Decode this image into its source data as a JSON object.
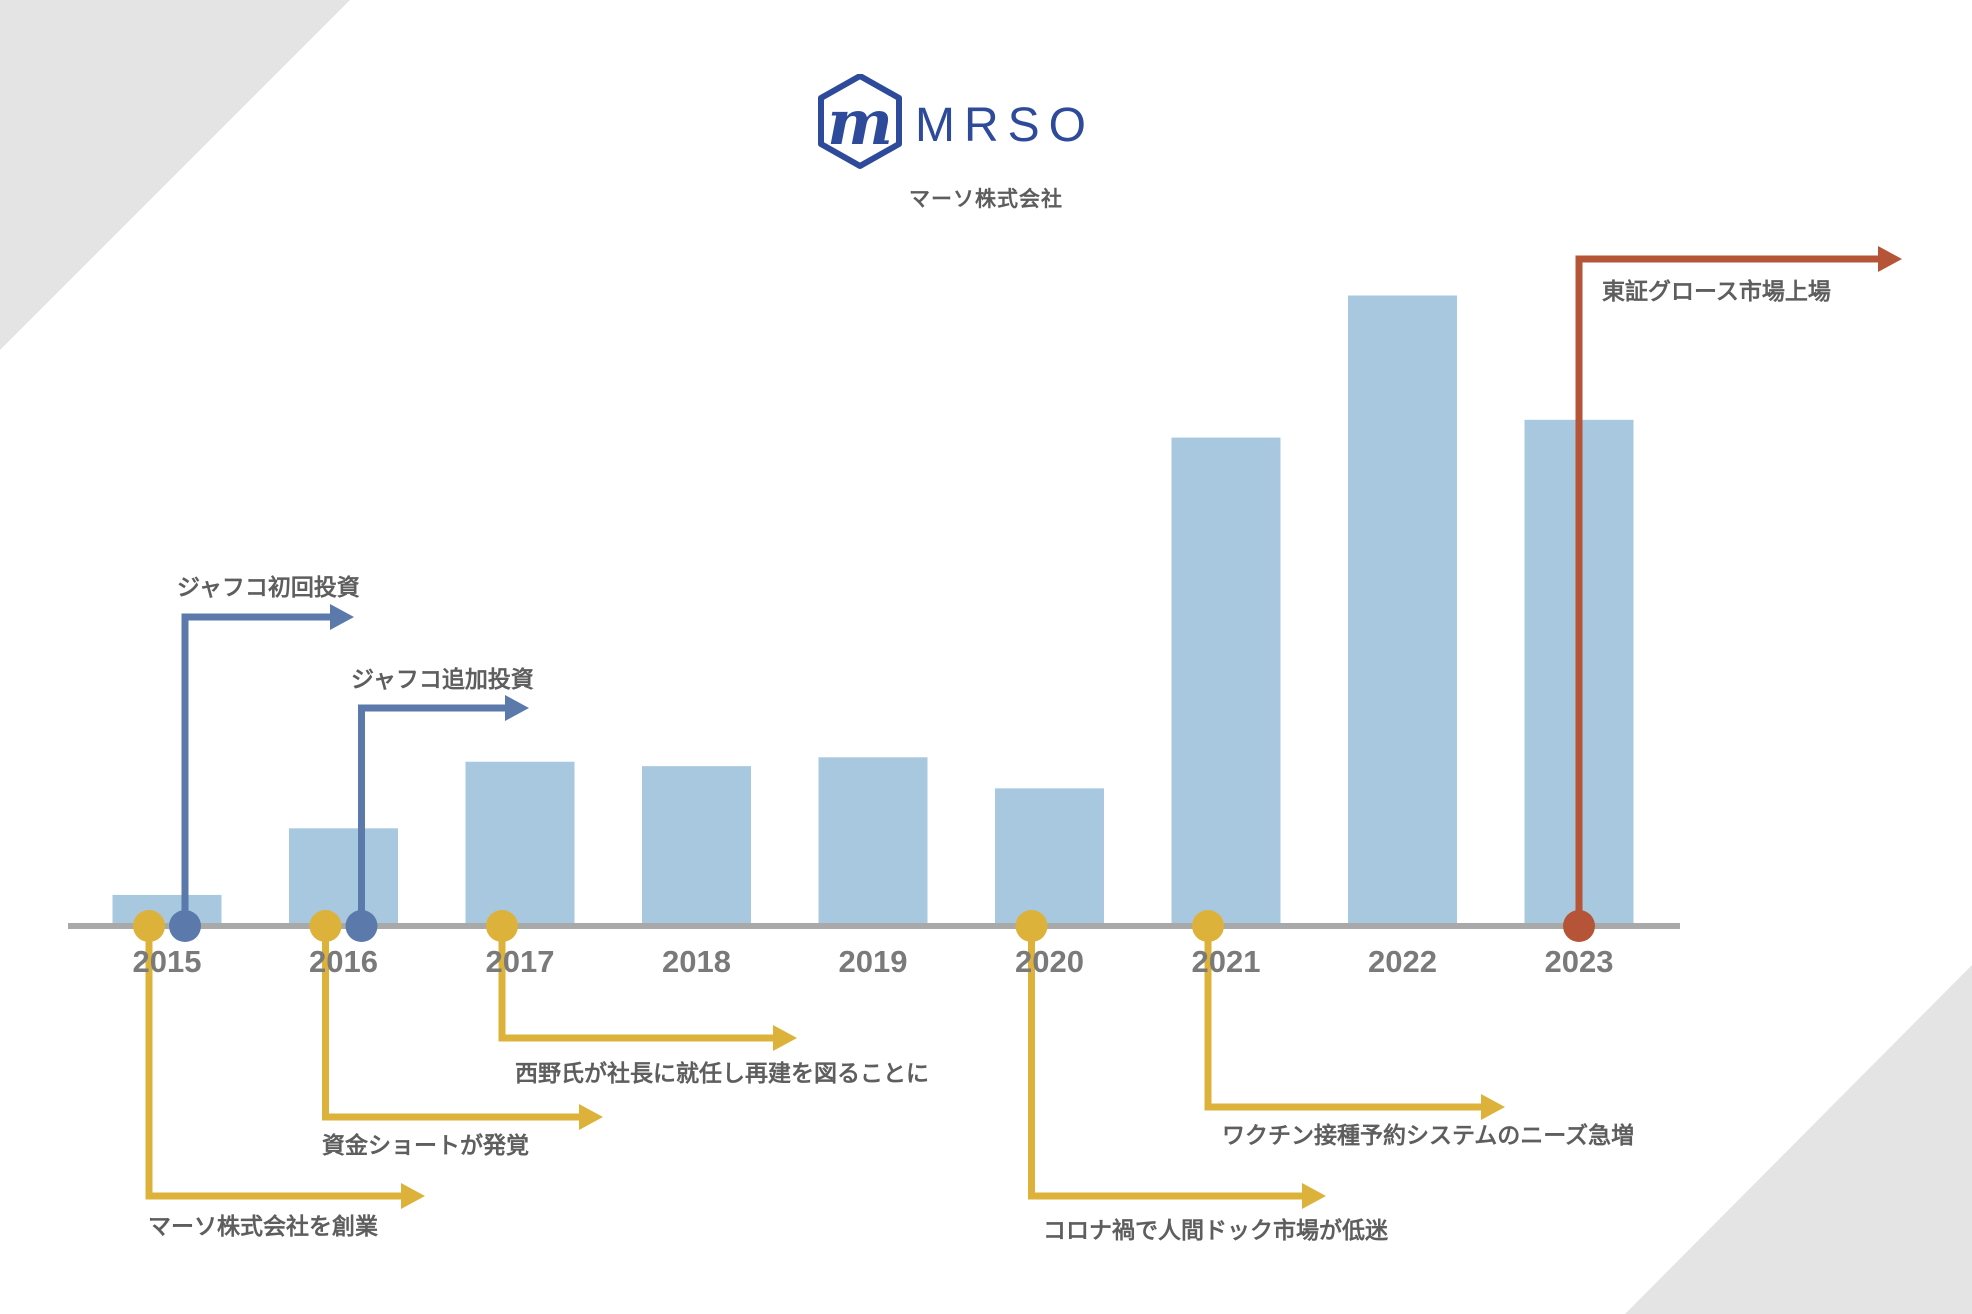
{
  "logo": {
    "wordmark": "MRSO",
    "mark_letter": "m"
  },
  "company_name": "マーソ株式会社",
  "colors": {
    "bar": "#a7c8de",
    "axis": "#a9a9a9",
    "year_text": "#7a7a7a",
    "event_text": "#5e5e5e",
    "yellow": "#ddb23a",
    "blue": "#5b7aab",
    "red": "#b55436",
    "logo_blue": "#2e4a9a",
    "corner_gray": "#e4e4e4"
  },
  "chart_data": {
    "type": "bar",
    "categories": [
      "2015",
      "2016",
      "2017",
      "2018",
      "2019",
      "2020",
      "2021",
      "2022",
      "2023"
    ],
    "values": [
      3.5,
      11,
      18.5,
      18,
      19,
      15.5,
      55,
      71,
      57
    ],
    "ylim": [
      0,
      75
    ],
    "grid": false,
    "legend": "none",
    "events": [
      {
        "label": "マーソ株式会社を創業",
        "year": "2015",
        "color": "yellow",
        "side": "below"
      },
      {
        "label": "資金ショートが発覚",
        "year": "2016",
        "color": "yellow",
        "side": "below"
      },
      {
        "label": "西野氏が社長に就任し再建を図ることに",
        "year": "2017",
        "color": "yellow",
        "side": "below"
      },
      {
        "label": "コロナ禍で人間ドック市場が低迷",
        "year": "2020",
        "color": "yellow",
        "side": "below"
      },
      {
        "label": "ワクチン接種予約システムのニーズ急増",
        "year": "2021",
        "color": "yellow",
        "side": "below"
      },
      {
        "label": "ジャフコ初回投資",
        "year": "2015",
        "color": "blue",
        "side": "above"
      },
      {
        "label": "ジャフコ追加投資",
        "year": "2016",
        "color": "blue",
        "side": "above"
      },
      {
        "label": "東証グロース市場上場",
        "year": "2023",
        "color": "red",
        "side": "above"
      }
    ]
  }
}
